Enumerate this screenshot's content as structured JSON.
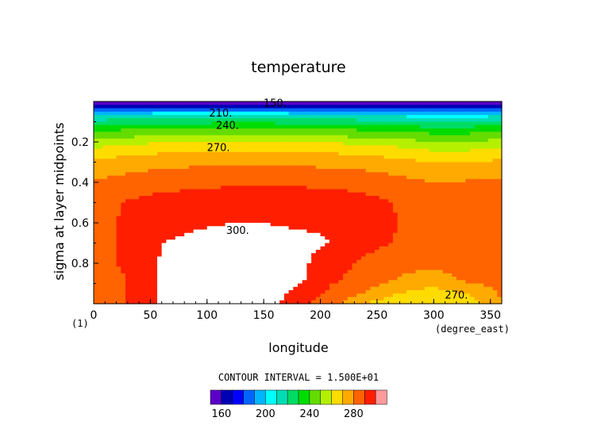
{
  "chart_data": {
    "type": "heatmap",
    "title": "temperature",
    "xlabel": "longitude",
    "ylabel": "sigma at layer midpoints",
    "x_unit": "(degree_east)",
    "y_unit": "(1)",
    "xlim": [
      0,
      360
    ],
    "ylim": [
      1.0,
      0.0
    ],
    "x_ticks": [
      "0",
      "50",
      "100",
      "150",
      "200",
      "250",
      "300",
      "350"
    ],
    "y_ticks": [
      "0.2",
      "0.4",
      "0.6",
      "0.8"
    ],
    "contour_interval_label": "CONTOUR INTERVAL = 1.500E+01",
    "contour_labels": [
      "150.",
      "210.",
      "240.",
      "270.",
      "300.",
      "270."
    ],
    "colorbar": {
      "min": 150,
      "max": 300,
      "step": 10,
      "tick_labels": [
        "160",
        "200",
        "240",
        "280"
      ],
      "colors": [
        "#5a00c8",
        "#0000b4",
        "#0000ff",
        "#0064ff",
        "#00b4ff",
        "#00ffff",
        "#00dcb4",
        "#00dc64",
        "#00dc00",
        "#64dc00",
        "#b4f000",
        "#ffdc00",
        "#ffaa00",
        "#ff6400",
        "#ff1e00",
        "#ff9a9a"
      ]
    },
    "y_levels": [
      0.01,
      0.04,
      0.08,
      0.14,
      0.22,
      0.3,
      0.4,
      0.5,
      0.6,
      0.7,
      0.8,
      0.88,
      0.95,
      1.0
    ],
    "x_points": [
      0,
      30,
      60,
      90,
      120,
      150,
      180,
      210,
      240,
      270,
      300,
      330,
      360
    ],
    "values": [
      [
        152,
        152,
        152,
        152,
        152,
        152,
        152,
        152,
        152,
        152,
        152,
        152,
        152
      ],
      [
        185,
        185,
        186,
        186,
        186,
        186,
        185,
        185,
        184,
        184,
        183,
        183,
        185
      ],
      [
        215,
        216,
        217,
        218,
        218,
        218,
        217,
        216,
        215,
        214,
        212,
        212,
        215
      ],
      [
        238,
        240,
        242,
        243,
        244,
        244,
        243,
        241,
        239,
        237,
        235,
        235,
        238
      ],
      [
        258,
        262,
        264,
        266,
        267,
        267,
        266,
        264,
        262,
        259,
        256,
        256,
        258
      ],
      [
        272,
        275,
        277,
        278,
        278,
        278,
        278,
        277,
        276,
        273,
        270,
        270,
        272
      ],
      [
        281,
        284,
        286,
        287,
        288,
        288,
        288,
        287,
        286,
        283,
        280,
        281,
        281
      ],
      [
        285,
        291,
        294,
        296,
        297,
        297,
        297,
        296,
        293,
        289,
        284,
        285,
        285
      ],
      [
        286,
        292,
        297,
        299,
        300,
        300,
        299,
        299,
        294,
        290,
        285,
        285,
        286
      ],
      [
        288,
        291,
        300,
        302,
        302,
        302,
        302,
        300,
        293,
        289,
        286,
        285,
        288
      ],
      [
        287,
        292,
        301,
        303,
        303,
        304,
        303,
        294,
        288,
        283,
        282,
        284,
        287
      ],
      [
        283,
        290,
        301,
        303,
        303,
        304,
        302,
        292,
        285,
        279,
        276,
        282,
        283
      ],
      [
        282,
        291,
        302,
        303,
        304,
        304,
        298,
        287,
        279,
        270,
        265,
        270,
        282
      ],
      [
        279,
        291,
        302,
        303,
        304,
        304,
        295,
        283,
        270,
        262,
        259,
        265,
        279
      ]
    ]
  }
}
